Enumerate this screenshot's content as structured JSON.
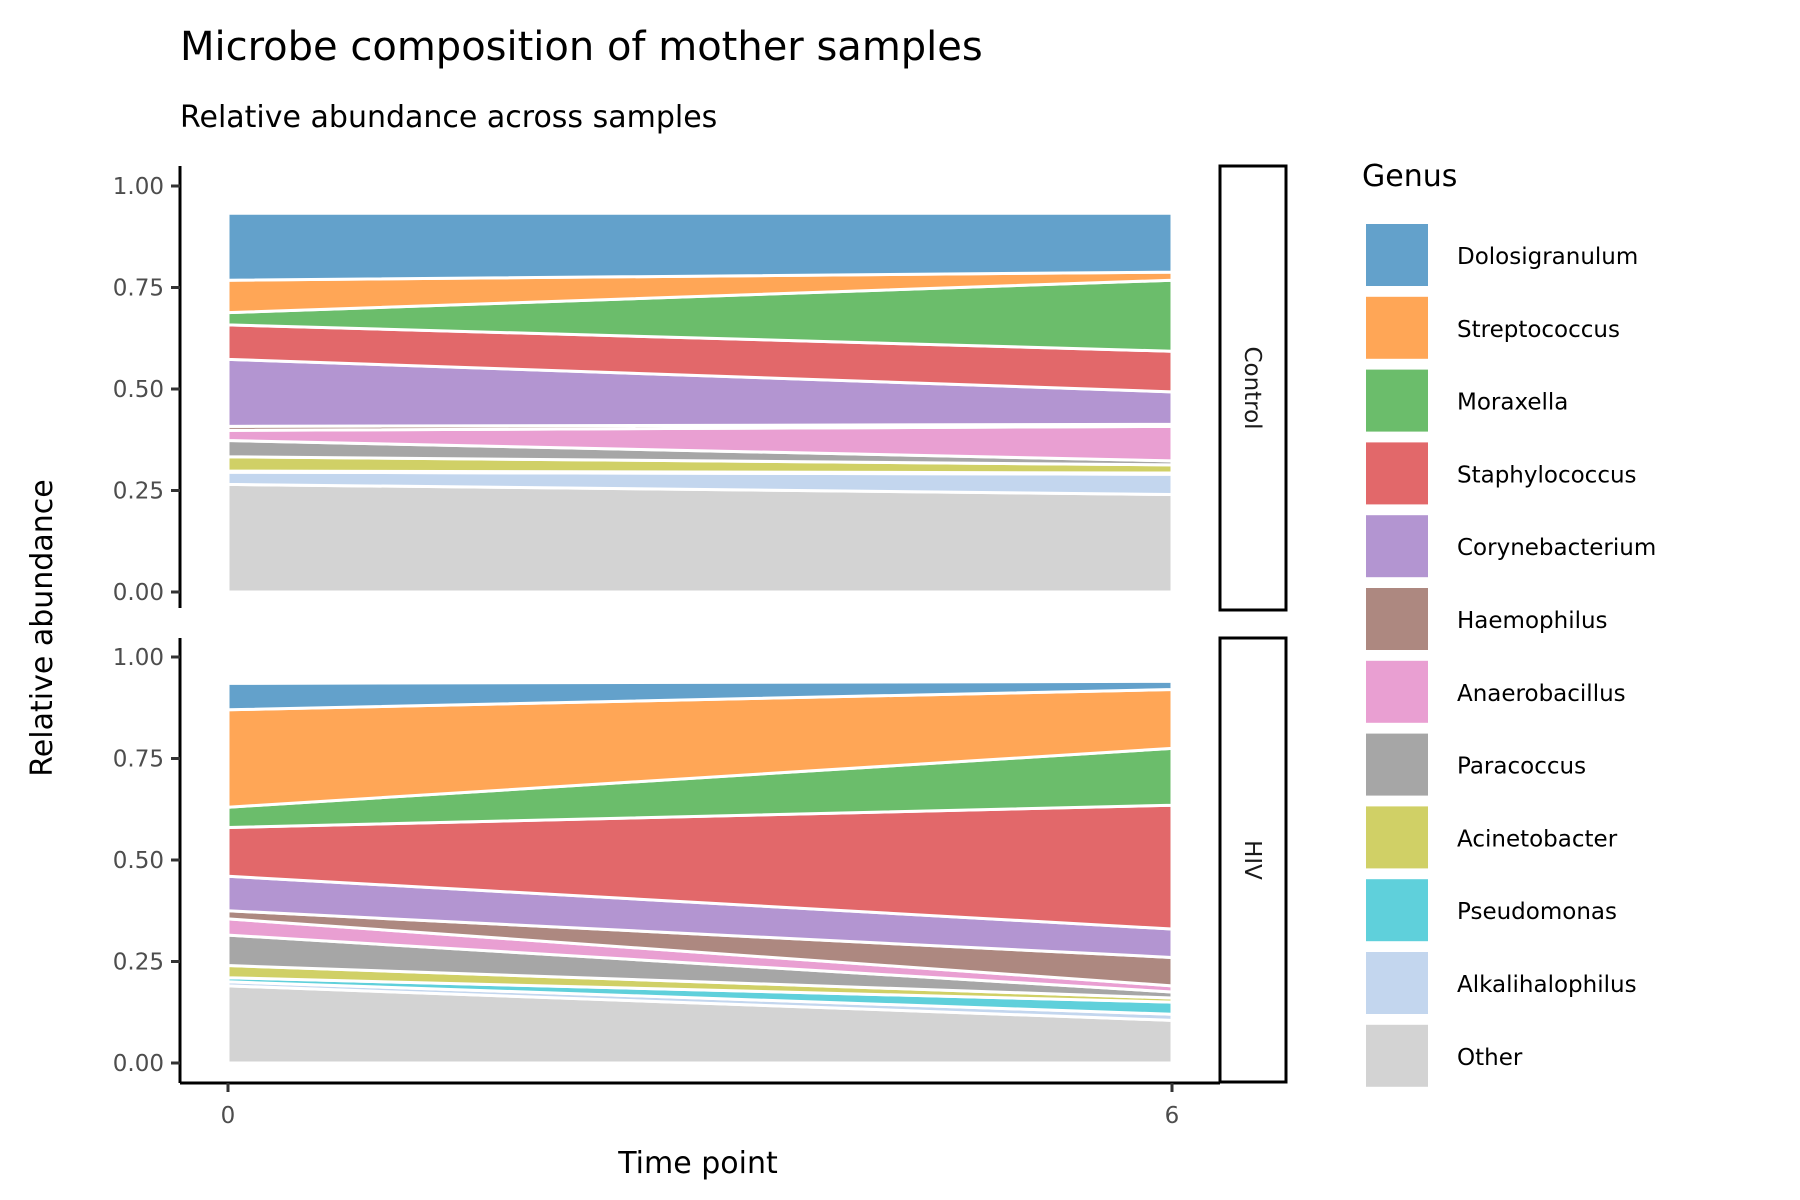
{
  "chart_data": {
    "type": "area",
    "title": "Microbe composition of mother samples",
    "subtitle": "Relative abundance across samples",
    "xlabel": "Time point",
    "ylabel": "Relative abundance",
    "x": [
      0,
      6
    ],
    "x_ticks": [
      "0",
      "6"
    ],
    "y_ticks": [
      "0.00",
      "0.25",
      "0.50",
      "0.75",
      "1.00"
    ],
    "ylim": [
      0,
      1
    ],
    "stacked": true,
    "grid": false,
    "legend_title": "Genus",
    "legend_position": "right",
    "genera": [
      {
        "name": "Dolosigranulum",
        "color": "#63a1cb"
      },
      {
        "name": "Streptococcus",
        "color": "#ffa656"
      },
      {
        "name": "Moraxella",
        "color": "#6bbd6b"
      },
      {
        "name": "Staphylococcus",
        "color": "#e2686a"
      },
      {
        "name": "Corynebacterium",
        "color": "#b395d1"
      },
      {
        "name": "Haemophilus",
        "color": "#ad8880"
      },
      {
        "name": "Anaerobacillus",
        "color": "#e99fd2"
      },
      {
        "name": "Paracoccus",
        "color": "#a6a6a6"
      },
      {
        "name": "Acinetobacter",
        "color": "#d0d066"
      },
      {
        "name": "Pseudomonas",
        "color": "#5fd0db"
      },
      {
        "name": "Alkalihalophilus",
        "color": "#c3d6ee"
      },
      {
        "name": "Other",
        "color": "#d3d3d3"
      }
    ],
    "panels": [
      {
        "label": "Control",
        "series": [
          {
            "name": "Dolosigranulum",
            "values": [
              0.165,
              0.145
            ]
          },
          {
            "name": "Streptococcus",
            "values": [
              0.08,
              0.02
            ]
          },
          {
            "name": "Moraxella",
            "values": [
              0.03,
              0.175
            ]
          },
          {
            "name": "Staphylococcus",
            "values": [
              0.085,
              0.1
            ]
          },
          {
            "name": "Corynebacterium",
            "values": [
              0.165,
              0.08
            ]
          },
          {
            "name": "Haemophilus",
            "values": [
              0.01,
              0.005
            ]
          },
          {
            "name": "Anaerobacillus",
            "values": [
              0.025,
              0.085
            ]
          },
          {
            "name": "Paracoccus",
            "values": [
              0.04,
              0.01
            ]
          },
          {
            "name": "Acinetobacter",
            "values": [
              0.035,
              0.02
            ]
          },
          {
            "name": "Pseudomonas",
            "values": [
              0.003,
              0.003
            ]
          },
          {
            "name": "Alkalihalophilus",
            "values": [
              0.03,
              0.05
            ]
          },
          {
            "name": "Other",
            "values": [
              0.265,
              0.24
            ]
          }
        ]
      },
      {
        "label": "HIV",
        "series": [
          {
            "name": "Dolosigranulum",
            "values": [
              0.065,
              0.02
            ]
          },
          {
            "name": "Streptococcus",
            "values": [
              0.24,
              0.145
            ]
          },
          {
            "name": "Moraxella",
            "values": [
              0.05,
              0.14
            ]
          },
          {
            "name": "Staphylococcus",
            "values": [
              0.12,
              0.305
            ]
          },
          {
            "name": "Corynebacterium",
            "values": [
              0.085,
              0.07
            ]
          },
          {
            "name": "Haemophilus",
            "values": [
              0.02,
              0.07
            ]
          },
          {
            "name": "Anaerobacillus",
            "values": [
              0.04,
              0.015
            ]
          },
          {
            "name": "Paracoccus",
            "values": [
              0.075,
              0.015
            ]
          },
          {
            "name": "Acinetobacter",
            "values": [
              0.03,
              0.01
            ]
          },
          {
            "name": "Pseudomonas",
            "values": [
              0.01,
              0.03
            ]
          },
          {
            "name": "Alkalihalophilus",
            "values": [
              0.01,
              0.015
            ]
          },
          {
            "name": "Other",
            "values": [
              0.19,
              0.105
            ]
          }
        ]
      }
    ]
  }
}
